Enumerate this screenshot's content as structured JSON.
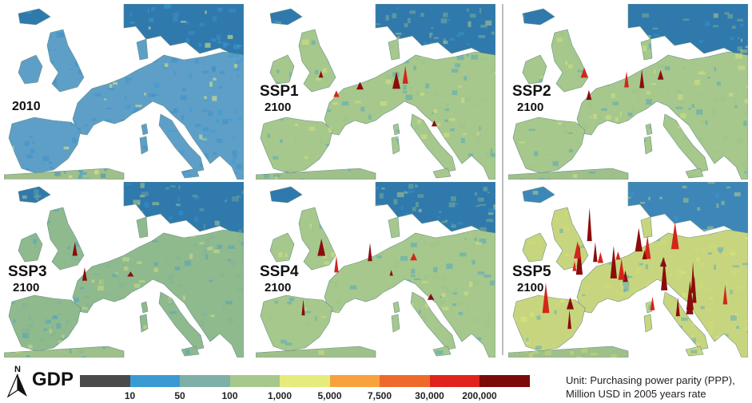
{
  "panels": [
    {
      "scenario": "",
      "year": "2010",
      "level": 0
    },
    {
      "scenario": "SSP1",
      "year": "2100",
      "level": 2
    },
    {
      "scenario": "SSP2",
      "year": "2100",
      "level": 2
    },
    {
      "scenario": "SSP3",
      "year": "2100",
      "level": 1
    },
    {
      "scenario": "SSP4",
      "year": "2100",
      "level": 2
    },
    {
      "scenario": "SSP5",
      "year": "2100",
      "level": 3
    }
  ],
  "legend": {
    "title": "GDP",
    "north_label": "N",
    "colors": [
      "#4a4a4a",
      "#3a9ad1",
      "#7fb0a8",
      "#a6c88c",
      "#e6ec7c",
      "#f7a23c",
      "#ee6a2c",
      "#e0231c",
      "#7d0a0a"
    ],
    "ticks": [
      "10",
      "50",
      "100",
      "1,000",
      "5,000",
      "7,500",
      "30,000",
      "200,000"
    ],
    "unit_line1": "Unit: Purchasing power parity (PPP),",
    "unit_line2": "Million USD in 2005 years rate"
  }
}
